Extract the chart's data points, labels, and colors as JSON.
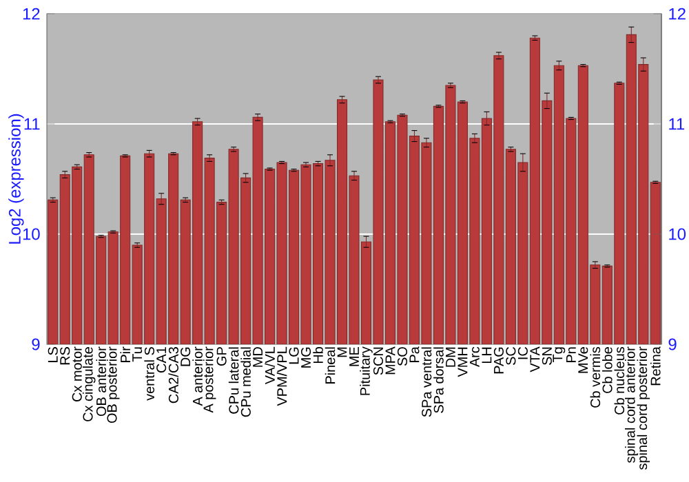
{
  "chart_data": {
    "type": "bar",
    "ylabel": "Log2 (expression)",
    "categories": [
      "LS",
      "RS",
      "Cx motor",
      "Cx cingulate",
      "OB anterior",
      "OB posterior",
      "Pir",
      "Tu",
      "ventral S",
      "CA1",
      "CA2/CA3",
      "DG",
      "A anterior",
      "A posterior",
      "GP",
      "CPu lateral",
      "CPu medial",
      "MD",
      "VA/VL",
      "VPM/VPL",
      "LG",
      "MG",
      "Hb",
      "Pineal",
      "M",
      "ME",
      "Pituitary",
      "SCN",
      "MPA",
      "SO",
      "Pa",
      "SPa ventral",
      "SPa dorsal",
      "DM",
      "VMH",
      "Arc",
      "LH",
      "PAG",
      "SC",
      "IC",
      "VTA",
      "SN",
      "Tg",
      "Pn",
      "MVe",
      "Cb vermis",
      "Cb lobe",
      "Cb nucleus",
      "spinal cord anterior",
      "spinal cord posterior",
      "Retina"
    ],
    "values": [
      10.31,
      10.54,
      10.61,
      10.72,
      9.98,
      10.02,
      10.71,
      9.9,
      10.73,
      10.32,
      10.73,
      10.31,
      11.02,
      10.69,
      10.29,
      10.77,
      10.51,
      11.06,
      10.59,
      10.65,
      10.58,
      10.63,
      10.64,
      10.67,
      11.22,
      10.53,
      9.93,
      11.4,
      11.02,
      11.08,
      10.89,
      10.83,
      11.16,
      11.35,
      11.2,
      10.87,
      11.05,
      11.62,
      10.77,
      10.65,
      11.78,
      11.21,
      11.53,
      11.05,
      11.53,
      9.72,
      9.71,
      11.37,
      11.81,
      11.54,
      10.47
    ],
    "errors": [
      0.02,
      0.03,
      0.02,
      0.02,
      0.01,
      0.01,
      0.01,
      0.02,
      0.03,
      0.05,
      0.01,
      0.02,
      0.03,
      0.03,
      0.02,
      0.02,
      0.04,
      0.03,
      0.01,
      0.01,
      0.01,
      0.02,
      0.02,
      0.05,
      0.03,
      0.04,
      0.05,
      0.03,
      0.01,
      0.01,
      0.05,
      0.04,
      0.01,
      0.02,
      0.01,
      0.04,
      0.06,
      0.03,
      0.02,
      0.08,
      0.02,
      0.07,
      0.04,
      0.01,
      0.01,
      0.03,
      0.01,
      0.01,
      0.07,
      0.06,
      0.01
    ],
    "color": "#b83a3a",
    "ylim": [
      9,
      12
    ],
    "yticks": [
      9,
      10,
      11,
      12
    ],
    "y2lim": [
      9,
      12
    ],
    "y2ticks": [
      9,
      10,
      11,
      12
    ],
    "grid": "y"
  }
}
